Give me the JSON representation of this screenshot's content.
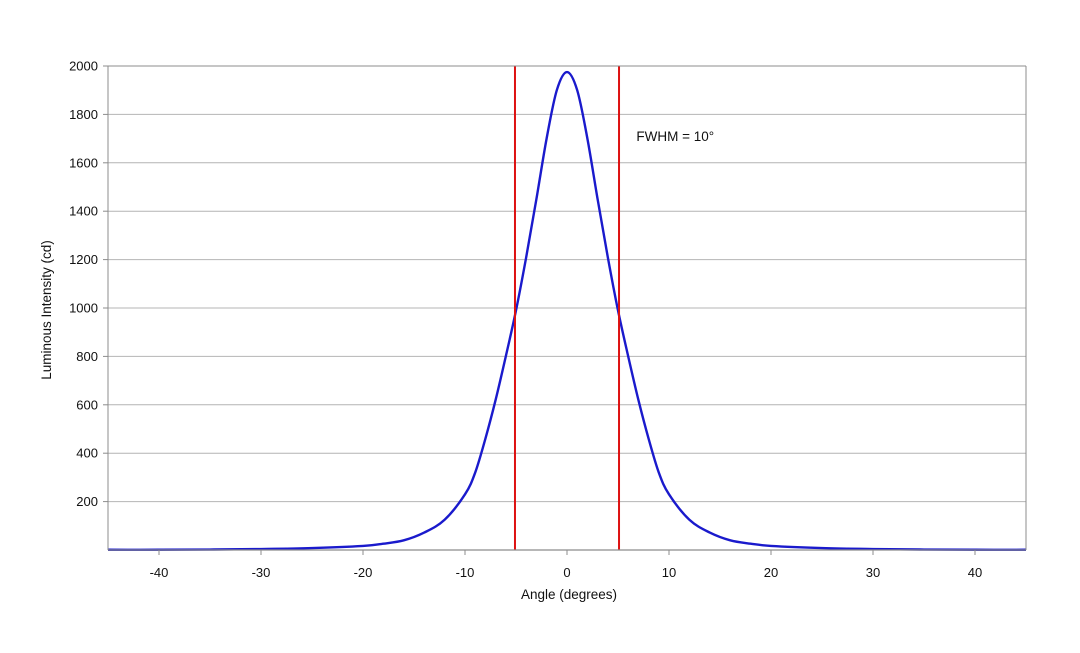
{
  "chart_data": {
    "type": "line",
    "title": "",
    "xlabel": "Angle (degrees)",
    "ylabel": "Luminous Intensity (cd)",
    "xlim": [
      -45,
      45
    ],
    "ylim": [
      0,
      2000
    ],
    "xticks": [
      -40,
      -30,
      -20,
      -10,
      0,
      10,
      20,
      30,
      40
    ],
    "yticks": [
      200,
      400,
      600,
      800,
      1000,
      1200,
      1400,
      1600,
      1800,
      2000
    ],
    "grid": {
      "horizontal": true,
      "vertical": false
    },
    "legend": "none",
    "series": [
      {
        "color": "#1a1acc",
        "x": [
          -45,
          -40,
          -35,
          -30,
          -25,
          -20,
          -18,
          -16,
          -14,
          -12,
          -10,
          -9,
          -8,
          -7,
          -6,
          -5,
          -4,
          -3,
          -2,
          -1,
          0,
          1,
          2,
          3,
          4,
          5,
          6,
          7,
          8,
          9,
          10,
          12,
          14,
          16,
          18,
          20,
          25,
          30,
          35,
          40,
          45
        ],
        "y": [
          1,
          1,
          2,
          4,
          8,
          17,
          26,
          40,
          72,
          125,
          230,
          320,
          460,
          620,
          800,
          990,
          1210,
          1450,
          1700,
          1900,
          1975,
          1900,
          1700,
          1450,
          1210,
          990,
          800,
          620,
          460,
          320,
          230,
          125,
          72,
          40,
          26,
          17,
          8,
          4,
          2,
          1,
          1
        ]
      }
    ],
    "vlines": [
      {
        "x": -5.1,
        "color": "#dd1111"
      },
      {
        "x": 5.1,
        "color": "#dd1111"
      }
    ],
    "annotations": [
      {
        "text": "FWHM = 10°",
        "x": 6.8,
        "y": 1690
      }
    ],
    "colors": {
      "grid": "#b4b4b4",
      "frame": "#8c8c8c"
    }
  }
}
